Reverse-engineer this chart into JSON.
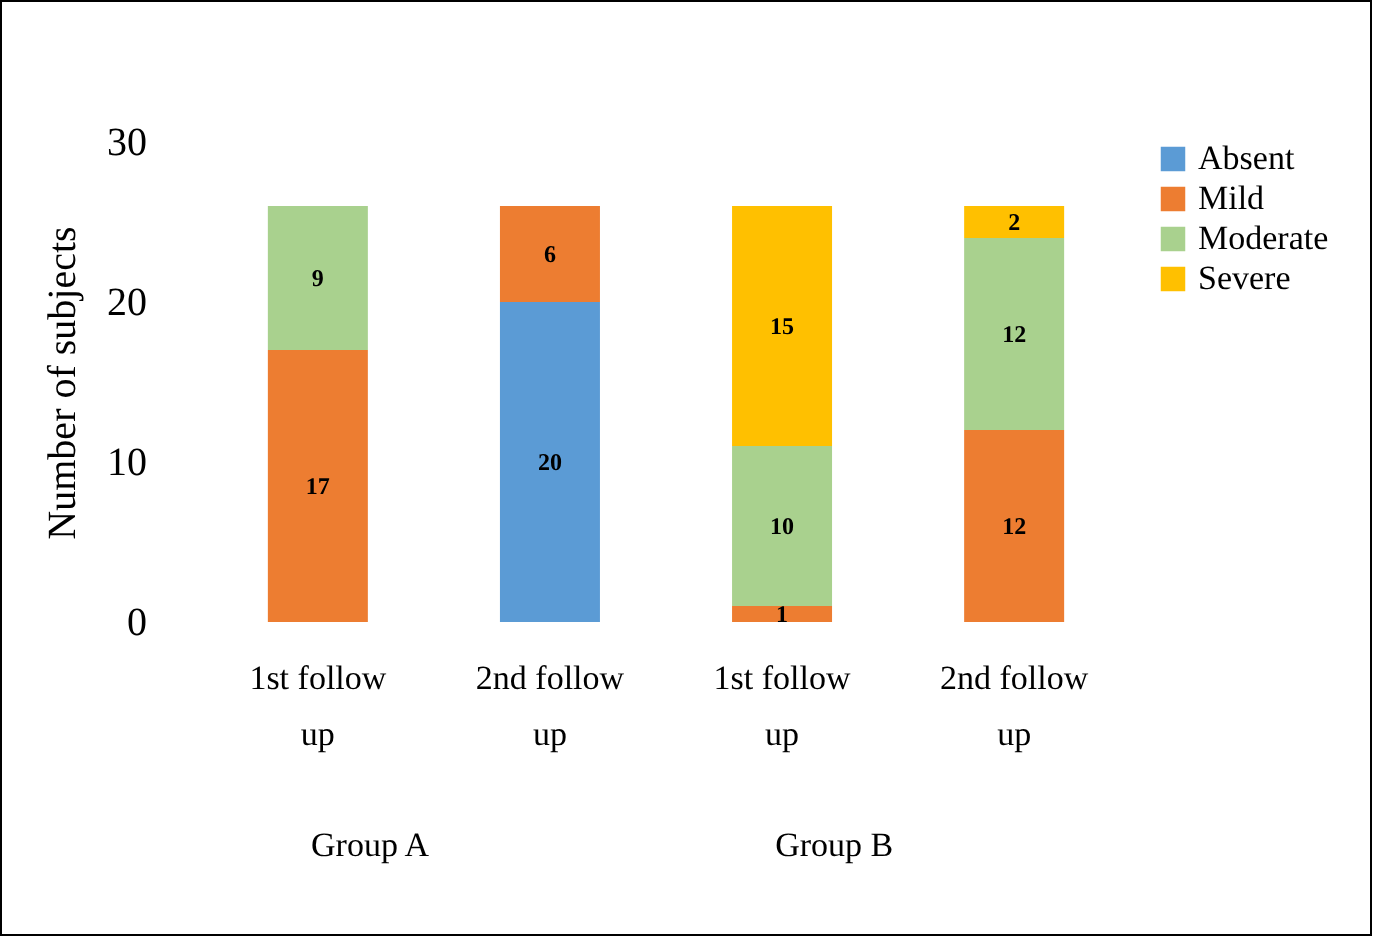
{
  "chart_data": {
    "type": "bar",
    "stacked": true,
    "ylabel": "Number of subjects",
    "categories": [
      "1st follow up",
      "2nd follow up",
      "1st follow up",
      "2nd follow up"
    ],
    "series": [
      {
        "name": "Absent",
        "color": "#5b9bd5",
        "values": [
          null,
          20,
          null,
          null
        ]
      },
      {
        "name": "Mild",
        "color": "#ed7d31",
        "values": [
          17,
          6,
          1,
          12
        ]
      },
      {
        "name": "Moderate",
        "color": "#a9d18e",
        "values": [
          9,
          null,
          10,
          12
        ]
      },
      {
        "name": "Severe",
        "color": "#ffc000",
        "values": [
          null,
          null,
          15,
          2
        ]
      }
    ],
    "ylim": [
      0,
      30
    ],
    "yticks": [
      0,
      10,
      20,
      30
    ],
    "grid": false,
    "legend": "top right",
    "data_labels": true,
    "annotations": [
      "Group A",
      "Group B"
    ]
  }
}
